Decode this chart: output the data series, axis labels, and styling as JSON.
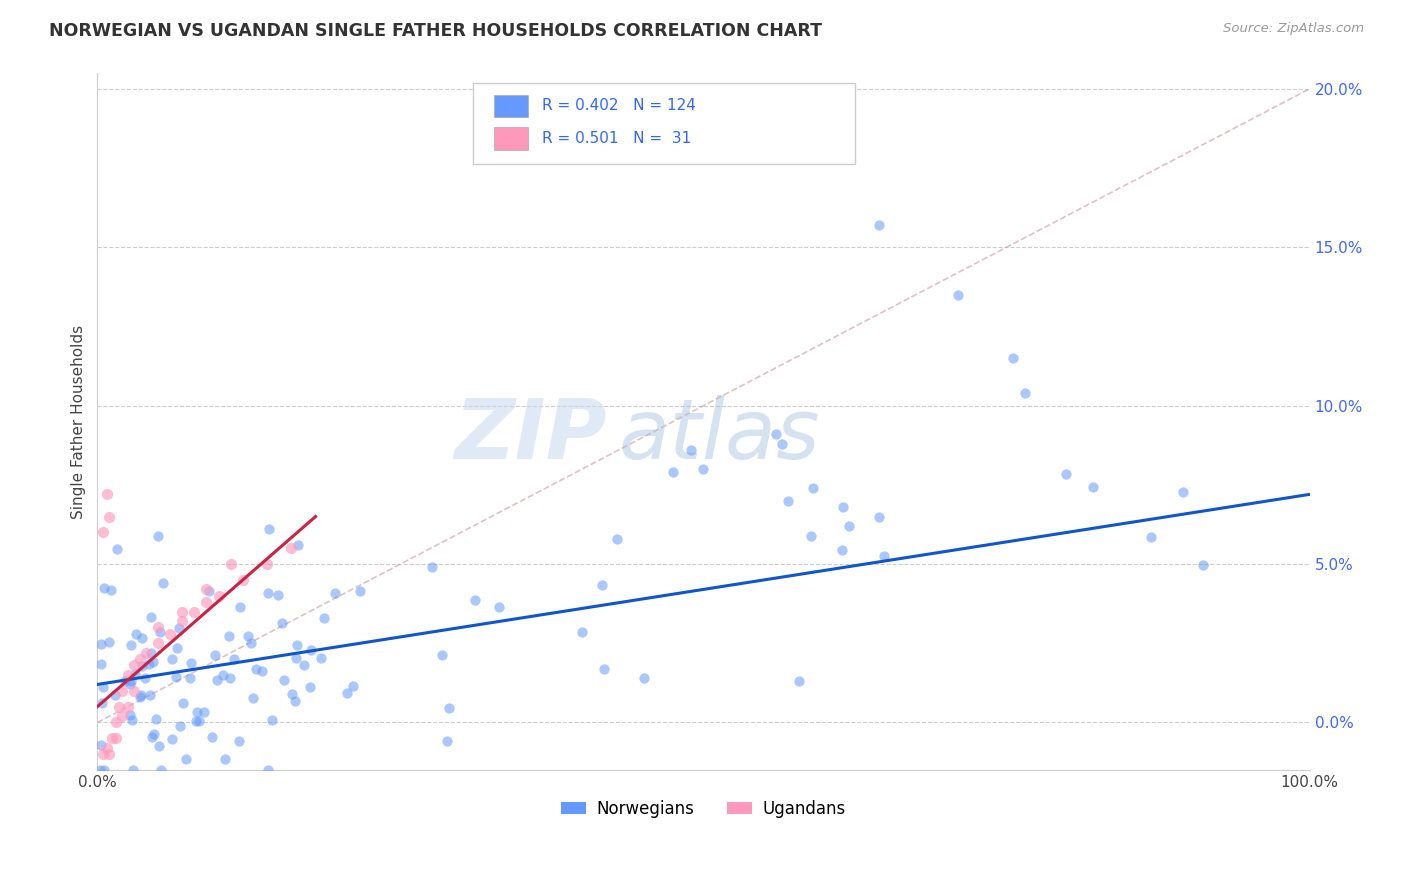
{
  "title": "NORWEGIAN VS UGANDAN SINGLE FATHER HOUSEHOLDS CORRELATION CHART",
  "source": "Source: ZipAtlas.com",
  "ylabel": "Single Father Households",
  "norwegian_R": 0.402,
  "norwegian_N": 124,
  "ugandan_R": 0.501,
  "ugandan_N": 31,
  "norwegian_color": "#6699FF",
  "ugandan_color": "#FF99BB",
  "norwegian_line_color": "#1155CC",
  "ugandan_line_color": "#CC2244",
  "diagonal_color": "#CC9999",
  "background_color": "#FFFFFF",
  "grid_color": "#CCCCCC",
  "title_color": "#333333",
  "legend_value_color": "#3366FF",
  "xmin": 0.0,
  "xmax": 1.0,
  "ymin": -0.015,
  "ymax": 0.205,
  "yticks": [
    0.0,
    0.05,
    0.1,
    0.15,
    0.2
  ],
  "ytick_labels": [
    "0.0%",
    "5.0%",
    "10.0%",
    "15.0%",
    "20.0%"
  ],
  "xticks": [
    0.0,
    0.25,
    0.5,
    0.75,
    1.0
  ],
  "xtick_labels": [
    "0.0%",
    "",
    "",
    "",
    "100.0%"
  ],
  "watermark_zip": "ZIP",
  "watermark_atlas": "atlas",
  "norwegians_label": "Norwegians",
  "ugandans_label": "Ugandans",
  "nor_line_x0": 0.0,
  "nor_line_y0": 0.012,
  "nor_line_x1": 1.0,
  "nor_line_y1": 0.072,
  "uga_line_x0": 0.0,
  "uga_line_y0": 0.005,
  "uga_line_x1": 0.18,
  "uga_line_y1": 0.065
}
